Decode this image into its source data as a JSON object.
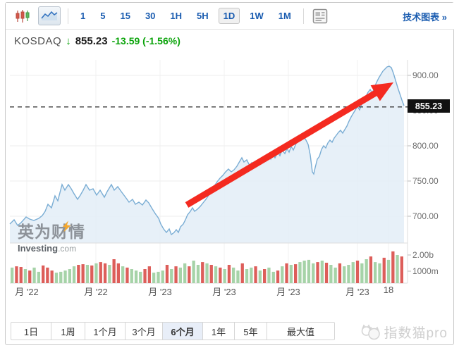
{
  "toolbar": {
    "candlestick_icon": "candlestick-chart-type",
    "area_icon": "area-chart-type",
    "layout_icon": "panel-layout",
    "intervals": [
      "1",
      "5",
      "15",
      "30",
      "1H",
      "5H",
      "1D",
      "1W",
      "1M"
    ],
    "selected_interval": "1D",
    "link": "技术图表 »"
  },
  "quote": {
    "symbol": "KOSDAQ",
    "arrow": "↓",
    "price": "855.23",
    "change": "-13.59",
    "change_pct": "(-1.56%)"
  },
  "watermarks": {
    "cn": "英为财情",
    "en_bold": "Investing",
    "en_tld": ".com",
    "brand": "指数猫pro"
  },
  "range_bar": {
    "buttons": [
      "1日",
      "1周",
      "1个月",
      "3个月",
      "6个月",
      "1年",
      "5年",
      "最大值"
    ],
    "selected": "6个月"
  },
  "chart_data": {
    "type": "area",
    "title": "KOSDAQ 6个月",
    "last_price": 855.23,
    "change": -13.59,
    "change_pct": -1.56,
    "colors": {
      "line": "#7aadd4",
      "fill": "#e3edf7",
      "dashed": "#3c3c3c",
      "arrow": "#f42a20",
      "vol_up": "#a6d3a8",
      "vol_down": "#dd5e5a",
      "link_blue": "#1a5cb0",
      "green": "#0ca40c"
    },
    "y_axis": {
      "min": 662,
      "max": 922,
      "labels": [
        {
          "text": "900.00",
          "price": 900
        },
        {
          "text": "850.00",
          "price": 850
        },
        {
          "text": "800.00",
          "price": 800
        },
        {
          "text": "750.00",
          "price": 750
        },
        {
          "text": "700.00",
          "price": 700
        }
      ],
      "grid_prices": [
        900,
        800,
        750,
        700
      ]
    },
    "x_axis": {
      "labels": [
        "月 '22",
        "月 '22",
        "月 '23",
        "月 '23",
        "月 '23",
        "月 '23",
        "18"
      ],
      "tick_x": [
        38,
        136,
        227,
        318,
        409,
        507,
        551
      ]
    },
    "volume_axis": [
      {
        "text": "2.00b",
        "y": 362
      },
      {
        "text": "1000m",
        "y": 385
      }
    ],
    "dashed_price": 855.23,
    "annotation_arrow": {
      "from": [
        265,
        291
      ],
      "to": [
        558,
        117
      ]
    },
    "series": [
      [
        14,
        689
      ],
      [
        20,
        695
      ],
      [
        25,
        687
      ],
      [
        30,
        691
      ],
      [
        37,
        699
      ],
      [
        42,
        696
      ],
      [
        48,
        694
      ],
      [
        55,
        697
      ],
      [
        60,
        701
      ],
      [
        64,
        707
      ],
      [
        68,
        717
      ],
      [
        73,
        712
      ],
      [
        78,
        729
      ],
      [
        82,
        722
      ],
      [
        88,
        745
      ],
      [
        92,
        737
      ],
      [
        97,
        745
      ],
      [
        101,
        739
      ],
      [
        105,
        732
      ],
      [
        110,
        724
      ],
      [
        114,
        730
      ],
      [
        118,
        737
      ],
      [
        122,
        745
      ],
      [
        127,
        737
      ],
      [
        132,
        739
      ],
      [
        137,
        730
      ],
      [
        142,
        737
      ],
      [
        148,
        727
      ],
      [
        152,
        735
      ],
      [
        158,
        745
      ],
      [
        162,
        737
      ],
      [
        167,
        742
      ],
      [
        172,
        735
      ],
      [
        178,
        727
      ],
      [
        183,
        720
      ],
      [
        188,
        724
      ],
      [
        192,
        717
      ],
      [
        197,
        720
      ],
      [
        202,
        716
      ],
      [
        207,
        723
      ],
      [
        211,
        719
      ],
      [
        215,
        712
      ],
      [
        220,
        704
      ],
      [
        225,
        697
      ],
      [
        228,
        689
      ],
      [
        232,
        682
      ],
      [
        236,
        677
      ],
      [
        240,
        682
      ],
      [
        243,
        674
      ],
      [
        247,
        677
      ],
      [
        250,
        681
      ],
      [
        253,
        677
      ],
      [
        256,
        685
      ],
      [
        260,
        689
      ],
      [
        263,
        695
      ],
      [
        266,
        702
      ],
      [
        270,
        707
      ],
      [
        273,
        712
      ],
      [
        276,
        707
      ],
      [
        280,
        710
      ],
      [
        284,
        714
      ],
      [
        288,
        719
      ],
      [
        292,
        724
      ],
      [
        296,
        730
      ],
      [
        300,
        737
      ],
      [
        304,
        743
      ],
      [
        308,
        749
      ],
      [
        312,
        754
      ],
      [
        316,
        758
      ],
      [
        320,
        763
      ],
      [
        324,
        767
      ],
      [
        328,
        763
      ],
      [
        332,
        766
      ],
      [
        336,
        771
      ],
      [
        340,
        778
      ],
      [
        343,
        783
      ],
      [
        346,
        777
      ],
      [
        350,
        780
      ],
      [
        354,
        772
      ],
      [
        357,
        776
      ],
      [
        360,
        769
      ],
      [
        364,
        774
      ],
      [
        368,
        780
      ],
      [
        371,
        775
      ],
      [
        374,
        783
      ],
      [
        377,
        778
      ],
      [
        380,
        786
      ],
      [
        384,
        781
      ],
      [
        387,
        788
      ],
      [
        390,
        783
      ],
      [
        394,
        791
      ],
      [
        397,
        786
      ],
      [
        400,
        794
      ],
      [
        404,
        789
      ],
      [
        407,
        796
      ],
      [
        410,
        791
      ],
      [
        413,
        799
      ],
      [
        416,
        794
      ],
      [
        419,
        801
      ],
      [
        422,
        808
      ],
      [
        425,
        813
      ],
      [
        428,
        817
      ],
      [
        431,
        813
      ],
      [
        434,
        808
      ],
      [
        437,
        802
      ],
      [
        440,
        787
      ],
      [
        443,
        763
      ],
      [
        445,
        760
      ],
      [
        447,
        769
      ],
      [
        450,
        781
      ],
      [
        453,
        785
      ],
      [
        456,
        795
      ],
      [
        459,
        800
      ],
      [
        462,
        797
      ],
      [
        465,
        804
      ],
      [
        468,
        808
      ],
      [
        471,
        805
      ],
      [
        474,
        811
      ],
      [
        477,
        815
      ],
      [
        480,
        819
      ],
      [
        483,
        822
      ],
      [
        486,
        818
      ],
      [
        489,
        823
      ],
      [
        492,
        828
      ],
      [
        495,
        835
      ],
      [
        498,
        841
      ],
      [
        501,
        846
      ],
      [
        504,
        851
      ],
      [
        507,
        856
      ],
      [
        510,
        851
      ],
      [
        513,
        859
      ],
      [
        516,
        865
      ],
      [
        519,
        870
      ],
      [
        522,
        876
      ],
      [
        525,
        880
      ],
      [
        528,
        875
      ],
      [
        531,
        883
      ],
      [
        534,
        890
      ],
      [
        537,
        896
      ],
      [
        540,
        901
      ],
      [
        543,
        906
      ],
      [
        546,
        909
      ],
      [
        549,
        912
      ],
      [
        552,
        913
      ],
      [
        555,
        911
      ],
      [
        558,
        903
      ],
      [
        561,
        893
      ],
      [
        564,
        883
      ],
      [
        567,
        874
      ],
      [
        570,
        865
      ],
      [
        573,
        857
      ]
    ],
    "volume": [
      [
        960,
        "g"
      ],
      [
        1040,
        "r"
      ],
      [
        1000,
        "r"
      ],
      [
        870,
        "g"
      ],
      [
        780,
        "r"
      ],
      [
        960,
        "g"
      ],
      [
        700,
        "g"
      ],
      [
        1090,
        "r"
      ],
      [
        960,
        "r"
      ],
      [
        780,
        "r"
      ],
      [
        650,
        "g"
      ],
      [
        700,
        "g"
      ],
      [
        780,
        "g"
      ],
      [
        870,
        "g"
      ],
      [
        1040,
        "g"
      ],
      [
        1130,
        "r"
      ],
      [
        1170,
        "r"
      ],
      [
        1130,
        "g"
      ],
      [
        1090,
        "r"
      ],
      [
        1220,
        "g"
      ],
      [
        1300,
        "r"
      ],
      [
        1220,
        "r"
      ],
      [
        1130,
        "g"
      ],
      [
        1480,
        "r"
      ],
      [
        1220,
        "r"
      ],
      [
        1040,
        "g"
      ],
      [
        960,
        "r"
      ],
      [
        870,
        "g"
      ],
      [
        780,
        "g"
      ],
      [
        700,
        "g"
      ],
      [
        870,
        "r"
      ],
      [
        1040,
        "r"
      ],
      [
        650,
        "g"
      ],
      [
        700,
        "g"
      ],
      [
        780,
        "g"
      ],
      [
        1130,
        "r"
      ],
      [
        870,
        "g"
      ],
      [
        1040,
        "r"
      ],
      [
        960,
        "g"
      ],
      [
        1220,
        "g"
      ],
      [
        1040,
        "r"
      ],
      [
        1390,
        "g"
      ],
      [
        1130,
        "g"
      ],
      [
        1300,
        "r"
      ],
      [
        1220,
        "g"
      ],
      [
        1130,
        "r"
      ],
      [
        1040,
        "g"
      ],
      [
        960,
        "r"
      ],
      [
        870,
        "g"
      ],
      [
        1130,
        "r"
      ],
      [
        960,
        "g"
      ],
      [
        780,
        "g"
      ],
      [
        1220,
        "r"
      ],
      [
        870,
        "g"
      ],
      [
        960,
        "g"
      ],
      [
        1040,
        "r"
      ],
      [
        780,
        "g"
      ],
      [
        870,
        "r"
      ],
      [
        960,
        "g"
      ],
      [
        700,
        "g"
      ],
      [
        780,
        "r"
      ],
      [
        1040,
        "g"
      ],
      [
        1220,
        "r"
      ],
      [
        1130,
        "g"
      ],
      [
        1170,
        "r"
      ],
      [
        1300,
        "g"
      ],
      [
        1390,
        "g"
      ],
      [
        1440,
        "g"
      ],
      [
        1220,
        "g"
      ],
      [
        1300,
        "r"
      ],
      [
        1390,
        "g"
      ],
      [
        1260,
        "r"
      ],
      [
        1130,
        "g"
      ],
      [
        960,
        "g"
      ],
      [
        1220,
        "r"
      ],
      [
        1040,
        "g"
      ],
      [
        1130,
        "g"
      ],
      [
        1300,
        "g"
      ],
      [
        1390,
        "r"
      ],
      [
        1220,
        "g"
      ],
      [
        1480,
        "g"
      ],
      [
        1650,
        "r"
      ],
      [
        1300,
        "g"
      ],
      [
        1220,
        "g"
      ],
      [
        1570,
        "r"
      ],
      [
        1440,
        "g"
      ],
      [
        1960,
        "r"
      ],
      [
        1740,
        "g"
      ],
      [
        1650,
        "r"
      ]
    ]
  }
}
